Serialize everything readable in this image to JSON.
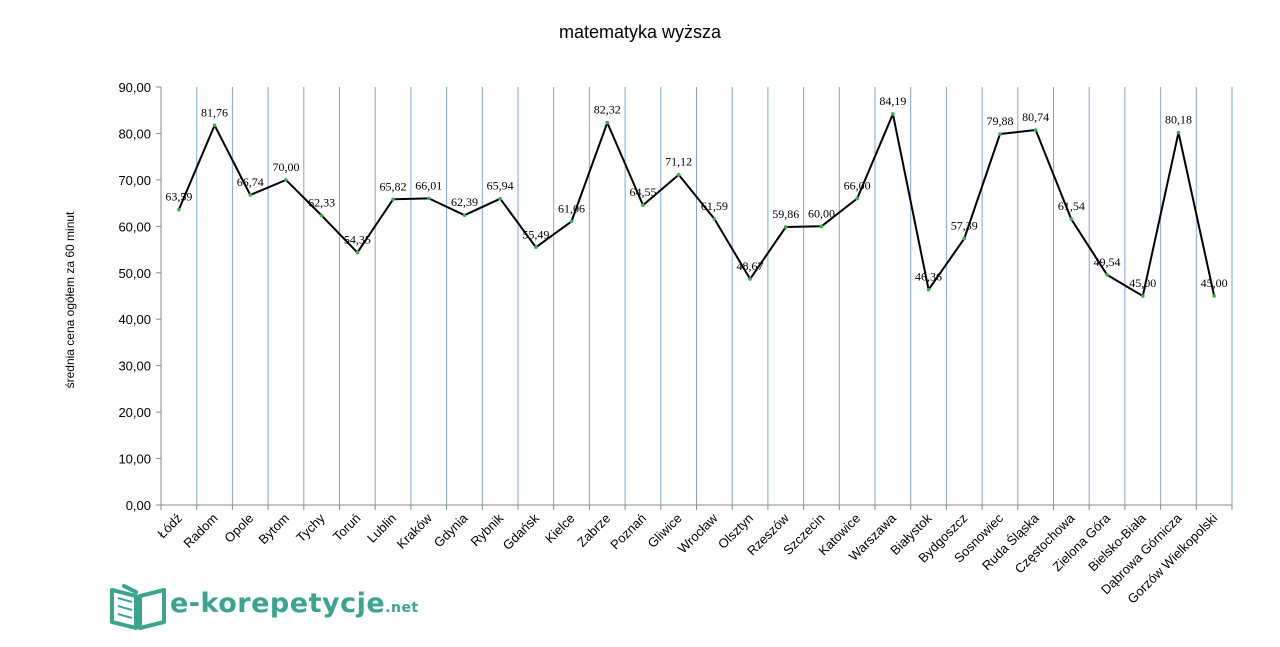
{
  "chart_data": {
    "type": "line",
    "title": "matematyka wyższa",
    "ylabel": "średnia cena ogółem za 60 minut",
    "xlabel": "",
    "ylim": [
      0,
      90
    ],
    "yticks": [
      "0,00",
      "10,00",
      "20,00",
      "30,00",
      "40,00",
      "50,00",
      "60,00",
      "70,00",
      "80,00",
      "90,00"
    ],
    "grid": "vertical",
    "line_color": "#000000",
    "marker_color": "#2db34a",
    "grid_color": "#7fa7d8",
    "categories": [
      "Łódź",
      "Radom",
      "Opole",
      "Bytom",
      "Tychy",
      "Toruń",
      "Lublin",
      "Kraków",
      "Gdynia",
      "Rybnik",
      "Gdańsk",
      "Kielce",
      "Zabrze",
      "Poznań",
      "Gliwice",
      "Wrocław",
      "Olsztyn",
      "Rzeszów",
      "Szczecin",
      "Katowice",
      "Warszawa",
      "Białystok",
      "Bydgoszcz",
      "Sosnowiec",
      "Ruda Śląska",
      "Częstochowa",
      "Zielona Góra",
      "Bielsko-Biała",
      "Dąbrowa Górnicza",
      "Gorzów Wielkopolski"
    ],
    "values": [
      63.59,
      81.76,
      66.74,
      70.0,
      62.33,
      54.35,
      65.82,
      66.01,
      62.39,
      65.94,
      55.49,
      61.06,
      82.32,
      64.55,
      71.12,
      61.59,
      48.67,
      59.86,
      60.0,
      66.0,
      84.19,
      46.36,
      57.39,
      79.88,
      80.74,
      61.54,
      49.54,
      45.0,
      80.18,
      45.0
    ],
    "value_labels": [
      "63,59",
      "81,76",
      "66,74",
      "70,00",
      "62,33",
      "54,35",
      "65,82",
      "66,01",
      "62,39",
      "65,94",
      "55,49",
      "61,06",
      "82,32",
      "64,55",
      "71,12",
      "61,59",
      "48,67",
      "59,86",
      "60,00",
      "66,00",
      "84,19",
      "46,36",
      "57,39",
      "79,88",
      "80,74",
      "61,54",
      "49,54",
      "45,00",
      "80,18",
      "45,00"
    ]
  },
  "logo": {
    "brand": "e-korepetycje",
    "suffix": ".net",
    "icon": "open-book-icon",
    "color": "#3aa58c"
  }
}
